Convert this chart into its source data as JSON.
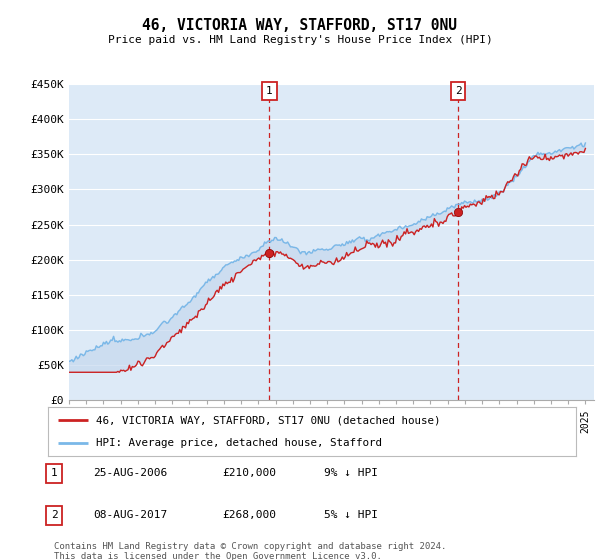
{
  "title": "46, VICTORIA WAY, STAFFORD, ST17 0NU",
  "subtitle": "Price paid vs. HM Land Registry's House Price Index (HPI)",
  "ylabel_ticks": [
    "£0",
    "£50K",
    "£100K",
    "£150K",
    "£200K",
    "£250K",
    "£300K",
    "£350K",
    "£400K",
    "£450K"
  ],
  "ylim": [
    0,
    450000
  ],
  "xlim_start": 1995.0,
  "xlim_end": 2025.5,
  "marker1_x": 2006.646,
  "marker1_y": 210000,
  "marker2_x": 2017.604,
  "marker2_y": 268000,
  "legend_line1": "46, VICTORIA WAY, STAFFORD, ST17 0NU (detached house)",
  "legend_line2": "HPI: Average price, detached house, Stafford",
  "table_row1": [
    "1",
    "25-AUG-2006",
    "£210,000",
    "9% ↓ HPI"
  ],
  "table_row2": [
    "2",
    "08-AUG-2017",
    "£268,000",
    "5% ↓ HPI"
  ],
  "footnote": "Contains HM Land Registry data © Crown copyright and database right 2024.\nThis data is licensed under the Open Government Licence v3.0.",
  "hpi_color": "#7ab8e8",
  "price_color": "#cc2222",
  "vline_color": "#cc2222",
  "bg_color": "#ddeaf7",
  "fill_color": "#c5d8ee"
}
